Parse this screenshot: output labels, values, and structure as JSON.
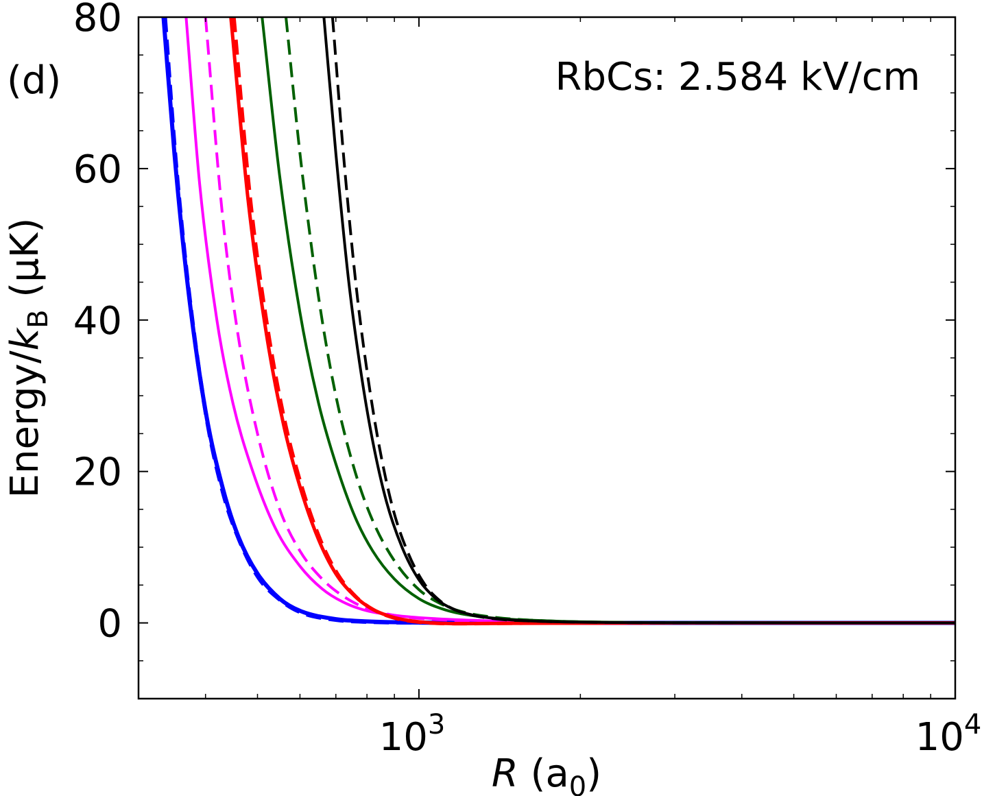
{
  "chart_data": {
    "type": "line",
    "panel_label": "(d)",
    "annotation": "RbCs: 2.584 kV/cm",
    "ylabel": "Energy/k_B (μK)",
    "xlabel": "R (a_0)",
    "x_scale": "log",
    "xlim": [
      300,
      10000
    ],
    "ylim": [
      -10,
      80
    ],
    "y_ticks": [
      0,
      20,
      40,
      60,
      80
    ],
    "y_tick_labels": [
      "0",
      "20",
      "40",
      "60",
      "80"
    ],
    "x_ticks": [
      1000,
      10000
    ],
    "x_tick_labels": [
      {
        "base": "10",
        "exp": "3"
      },
      {
        "base": "10",
        "exp": "4"
      }
    ],
    "x_minor_ticks": [
      400,
      500,
      600,
      700,
      800,
      900,
      2000,
      3000,
      4000,
      5000,
      6000,
      7000,
      8000,
      9000
    ],
    "y_minor_ticks": [
      -5,
      5,
      10,
      15,
      25,
      30,
      35,
      45,
      50,
      55,
      65,
      70,
      75
    ],
    "grid": false,
    "series": [
      {
        "color": "#0000ff",
        "dash": "solid",
        "width": 6,
        "x": [
          334,
          350,
          370,
          400,
          430,
          460,
          500,
          550,
          600,
          700,
          800,
          1000,
          1500,
          3000,
          10000
        ],
        "y": [
          80,
          62,
          45,
          28,
          18,
          11.5,
          6.5,
          3.2,
          1.6,
          0.5,
          0.2,
          0.05,
          0.01,
          0,
          0
        ]
      },
      {
        "color": "#0000ff",
        "dash": "dashed",
        "width": 6,
        "x": [
          336,
          352,
          372,
          402,
          432,
          462,
          502,
          552,
          602,
          702,
          802,
          1000,
          1500,
          3000,
          10000
        ],
        "y": [
          80,
          61,
          44,
          27,
          17,
          11,
          6,
          3,
          1.4,
          0.4,
          0.15,
          0.04,
          0.01,
          0,
          0
        ]
      },
      {
        "color": "#ff00ff",
        "dash": "solid",
        "width": 4,
        "x": [
          368,
          390,
          420,
          450,
          490,
          540,
          600,
          660,
          720,
          800,
          900,
          1000,
          1200,
          1500,
          2000,
          3000,
          10000
        ],
        "y": [
          80,
          58,
          40,
          29,
          20,
          12.5,
          7.5,
          4.5,
          2.8,
          1.6,
          1.0,
          0.7,
          0.4,
          0.2,
          0.1,
          0.03,
          0
        ]
      },
      {
        "color": "#ff00ff",
        "dash": "dashed",
        "width": 4,
        "x": [
          400,
          430,
          460,
          500,
          550,
          600,
          660,
          720,
          800,
          900,
          1000,
          1200,
          1500,
          2000,
          3000,
          10000
        ],
        "y": [
          80,
          54,
          38,
          25,
          15,
          9.5,
          5.8,
          3.6,
          1.9,
          1.0,
          0.6,
          0.3,
          0.15,
          0.06,
          0.02,
          0
        ]
      },
      {
        "color": "#ff0000",
        "dash": "solid",
        "width": 5,
        "x": [
          446,
          480,
          520,
          560,
          600,
          650,
          700,
          760,
          820,
          900,
          1000,
          1200,
          1500,
          3000,
          10000
        ],
        "y": [
          80,
          56,
          38,
          26,
          18,
          11,
          6.5,
          3.5,
          1.8,
          0.7,
          0.15,
          -0.1,
          -0.05,
          0,
          0
        ]
      },
      {
        "color": "#ff0000",
        "dash": "dashed",
        "width": 5,
        "x": [
          452,
          485,
          525,
          565,
          605,
          655,
          705,
          765,
          825,
          905,
          1000,
          1200,
          1500,
          3000,
          10000
        ],
        "y": [
          80,
          56,
          38,
          26,
          18,
          11,
          6.5,
          3.4,
          1.7,
          0.6,
          0.1,
          -0.1,
          -0.05,
          0,
          0
        ]
      },
      {
        "color": "#006000",
        "dash": "solid",
        "width": 4,
        "x": [
          510,
          550,
          600,
          650,
          700,
          760,
          820,
          900,
          1000,
          1100,
          1200,
          1400,
          1700,
          2000,
          3000,
          10000
        ],
        "y": [
          80,
          59,
          41,
          29,
          21,
          14,
          9.5,
          5.8,
          3.2,
          1.9,
          1.2,
          0.6,
          0.3,
          0.15,
          0.04,
          0
        ]
      },
      {
        "color": "#006000",
        "dash": "dashed",
        "width": 4,
        "x": [
          565,
          600,
          650,
          700,
          760,
          820,
          900,
          1000,
          1100,
          1200,
          1400,
          1700,
          2000,
          3000,
          10000
        ],
        "y": [
          80,
          62,
          43,
          30,
          20,
          13.5,
          8.2,
          4.4,
          2.5,
          1.5,
          0.7,
          0.3,
          0.15,
          0.04,
          0
        ]
      },
      {
        "color": "#000000",
        "dash": "solid",
        "width": 4,
        "x": [
          665,
          700,
          740,
          780,
          820,
          870,
          930,
          1000,
          1080,
          1160,
          1250,
          1400,
          1700,
          2000,
          3000,
          10000
        ],
        "y": [
          80,
          62,
          45,
          33,
          24,
          16,
          10,
          5.7,
          3.1,
          1.8,
          1.1,
          0.55,
          0.2,
          0.1,
          0.02,
          0
        ]
      },
      {
        "color": "#000000",
        "dash": "dashed",
        "width": 4,
        "x": [
          690,
          725,
          765,
          805,
          845,
          895,
          955,
          1025,
          1100,
          1180,
          1260,
          1400,
          1700,
          2000,
          3000,
          10000
        ],
        "y": [
          80,
          61,
          44,
          32,
          23,
          15,
          9.2,
          5.1,
          2.8,
          1.6,
          1.0,
          0.5,
          0.2,
          0.1,
          0.02,
          0
        ]
      }
    ]
  }
}
